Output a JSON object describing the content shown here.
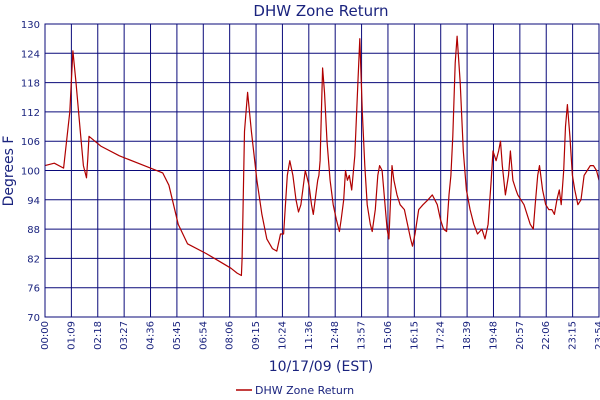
{
  "chart_data": {
    "type": "line",
    "title": "DHW Zone Return",
    "xlabel": "10/17/09 (EST)",
    "ylabel": "Degrees F",
    "ylim": [
      70,
      130
    ],
    "yticks": [
      70,
      76,
      82,
      88,
      94,
      100,
      106,
      112,
      118,
      124,
      130
    ],
    "xticks": [
      "00:00",
      "01:09",
      "02:18",
      "03:27",
      "04:36",
      "05:45",
      "06:54",
      "08:06",
      "09:15",
      "10:24",
      "11:36",
      "12:48",
      "13:57",
      "15:06",
      "16:15",
      "17:24",
      "18:39",
      "19:48",
      "20:57",
      "22:06",
      "23:15",
      "23:54"
    ],
    "grid": true,
    "legend_position": "bottom-center",
    "colors": {
      "series": "#b00000",
      "grid": "#0a0a7a",
      "text": "#1a237e"
    },
    "series": [
      {
        "name": "DHW Zone Return",
        "points": [
          [
            0,
            101
          ],
          [
            15,
            101.5
          ],
          [
            30,
            100.5
          ],
          [
            40,
            112
          ],
          [
            45,
            124.5
          ],
          [
            50,
            118
          ],
          [
            57,
            108
          ],
          [
            62,
            101
          ],
          [
            67,
            98.5
          ],
          [
            69,
            102.5
          ],
          [
            71,
            107
          ],
          [
            90,
            105
          ],
          [
            120,
            103
          ],
          [
            160,
            101
          ],
          [
            190,
            99.5
          ],
          [
            200,
            97
          ],
          [
            215,
            89
          ],
          [
            230,
            85
          ],
          [
            260,
            83
          ],
          [
            280,
            81.5
          ],
          [
            300,
            80
          ],
          [
            310,
            79
          ],
          [
            317,
            78.5
          ],
          [
            318,
            82
          ],
          [
            322,
            108
          ],
          [
            327,
            116
          ],
          [
            333,
            108
          ],
          [
            342,
            98
          ],
          [
            350,
            91
          ],
          [
            358,
            86
          ],
          [
            367,
            84
          ],
          [
            374,
            83.5
          ],
          [
            380,
            87
          ],
          [
            385,
            87
          ],
          [
            391,
            99
          ],
          [
            395,
            102
          ],
          [
            400,
            99
          ],
          [
            405,
            94
          ],
          [
            409,
            91.5
          ],
          [
            413,
            93
          ],
          [
            417,
            97
          ],
          [
            420,
            100
          ],
          [
            426,
            97
          ],
          [
            430,
            93
          ],
          [
            433,
            91
          ],
          [
            437,
            95
          ],
          [
            440,
            98
          ],
          [
            442,
            99
          ],
          [
            444,
            102
          ],
          [
            446,
            112
          ],
          [
            448,
            121
          ],
          [
            451,
            116
          ],
          [
            455,
            106
          ],
          [
            460,
            98
          ],
          [
            465,
            93
          ],
          [
            470,
            90
          ],
          [
            475,
            87.5
          ],
          [
            478,
            90
          ],
          [
            482,
            94
          ],
          [
            485,
            100
          ],
          [
            488,
            98
          ],
          [
            491,
            99
          ],
          [
            495,
            96
          ],
          [
            500,
            103
          ],
          [
            505,
            118
          ],
          [
            508,
            127
          ],
          [
            512,
            112
          ],
          [
            516,
            101
          ],
          [
            520,
            93
          ],
          [
            525,
            89
          ],
          [
            528,
            87.5
          ],
          [
            533,
            92
          ],
          [
            537,
            99
          ],
          [
            540,
            101
          ],
          [
            544,
            100
          ],
          [
            548,
            94
          ],
          [
            552,
            88
          ],
          [
            555,
            86
          ],
          [
            560,
            101
          ],
          [
            563,
            98
          ],
          [
            568,
            95
          ],
          [
            573,
            93
          ],
          [
            580,
            92
          ],
          [
            585,
            89
          ],
          [
            590,
            86
          ],
          [
            593,
            84.5
          ],
          [
            597,
            87
          ],
          [
            603,
            92
          ],
          [
            610,
            93
          ],
          [
            618,
            94
          ],
          [
            625,
            95
          ],
          [
            633,
            93
          ],
          [
            638,
            90
          ],
          [
            643,
            88
          ],
          [
            648,
            87.5
          ],
          [
            652,
            95
          ],
          [
            655,
            99
          ],
          [
            658,
            107
          ],
          [
            662,
            122
          ],
          [
            665,
            127.5
          ],
          [
            670,
            118
          ],
          [
            675,
            104
          ],
          [
            680,
            96
          ],
          [
            686,
            92
          ],
          [
            692,
            89
          ],
          [
            698,
            87
          ],
          [
            705,
            88
          ],
          [
            710,
            86
          ],
          [
            715,
            89
          ],
          [
            720,
            98
          ],
          [
            723,
            104
          ],
          [
            728,
            102
          ],
          [
            732,
            104
          ],
          [
            735,
            106
          ],
          [
            738,
            101
          ],
          [
            743,
            95
          ],
          [
            748,
            99
          ],
          [
            751,
            104
          ],
          [
            755,
            98
          ],
          [
            760,
            96
          ],
          [
            763,
            95
          ],
          [
            768,
            94
          ],
          [
            773,
            93
          ],
          [
            778,
            91
          ],
          [
            783,
            89
          ],
          [
            788,
            88
          ],
          [
            791,
            93
          ],
          [
            795,
            99
          ],
          [
            798,
            101
          ],
          [
            803,
            96
          ],
          [
            808,
            93
          ],
          [
            813,
            92
          ],
          [
            818,
            92
          ],
          [
            822,
            91
          ],
          [
            826,
            94
          ],
          [
            830,
            96
          ],
          [
            833,
            93
          ],
          [
            837,
            100
          ],
          [
            840,
            109
          ],
          [
            843,
            113.5
          ],
          [
            847,
            107
          ],
          [
            851,
            99
          ],
          [
            855,
            96
          ],
          [
            860,
            93
          ],
          [
            865,
            94
          ],
          [
            870,
            99
          ],
          [
            875,
            100
          ],
          [
            880,
            101
          ],
          [
            885,
            101
          ],
          [
            890,
            100
          ],
          [
            894,
            98
          ]
        ]
      }
    ]
  }
}
